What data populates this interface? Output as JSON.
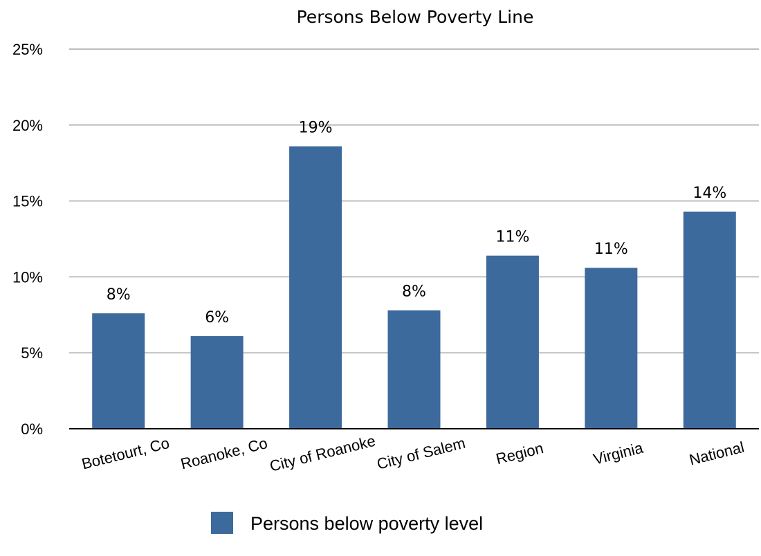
{
  "chart_data": {
    "type": "bar",
    "title": "Persons Below Poverty Line",
    "categories": [
      "Botetourt, Co",
      "Roanoke, Co",
      "City of Roanoke",
      "City of Salem",
      "Region",
      "Virginia",
      "National"
    ],
    "series": [
      {
        "name": "Persons below poverty level",
        "values": [
          7.6,
          6.1,
          18.6,
          7.8,
          11.4,
          10.6,
          14.3
        ],
        "data_labels": [
          "8%",
          "6%",
          "19%",
          "8%",
          "11%",
          "11%",
          "14%"
        ],
        "color": "#3d6a9d"
      }
    ],
    "ylim": [
      0,
      25
    ],
    "yticks": [
      0,
      5,
      10,
      15,
      20,
      25
    ],
    "ytick_labels": [
      "0%",
      "5%",
      "10%",
      "15%",
      "20%",
      "25%"
    ],
    "grid": true,
    "legend_position": "bottom"
  }
}
